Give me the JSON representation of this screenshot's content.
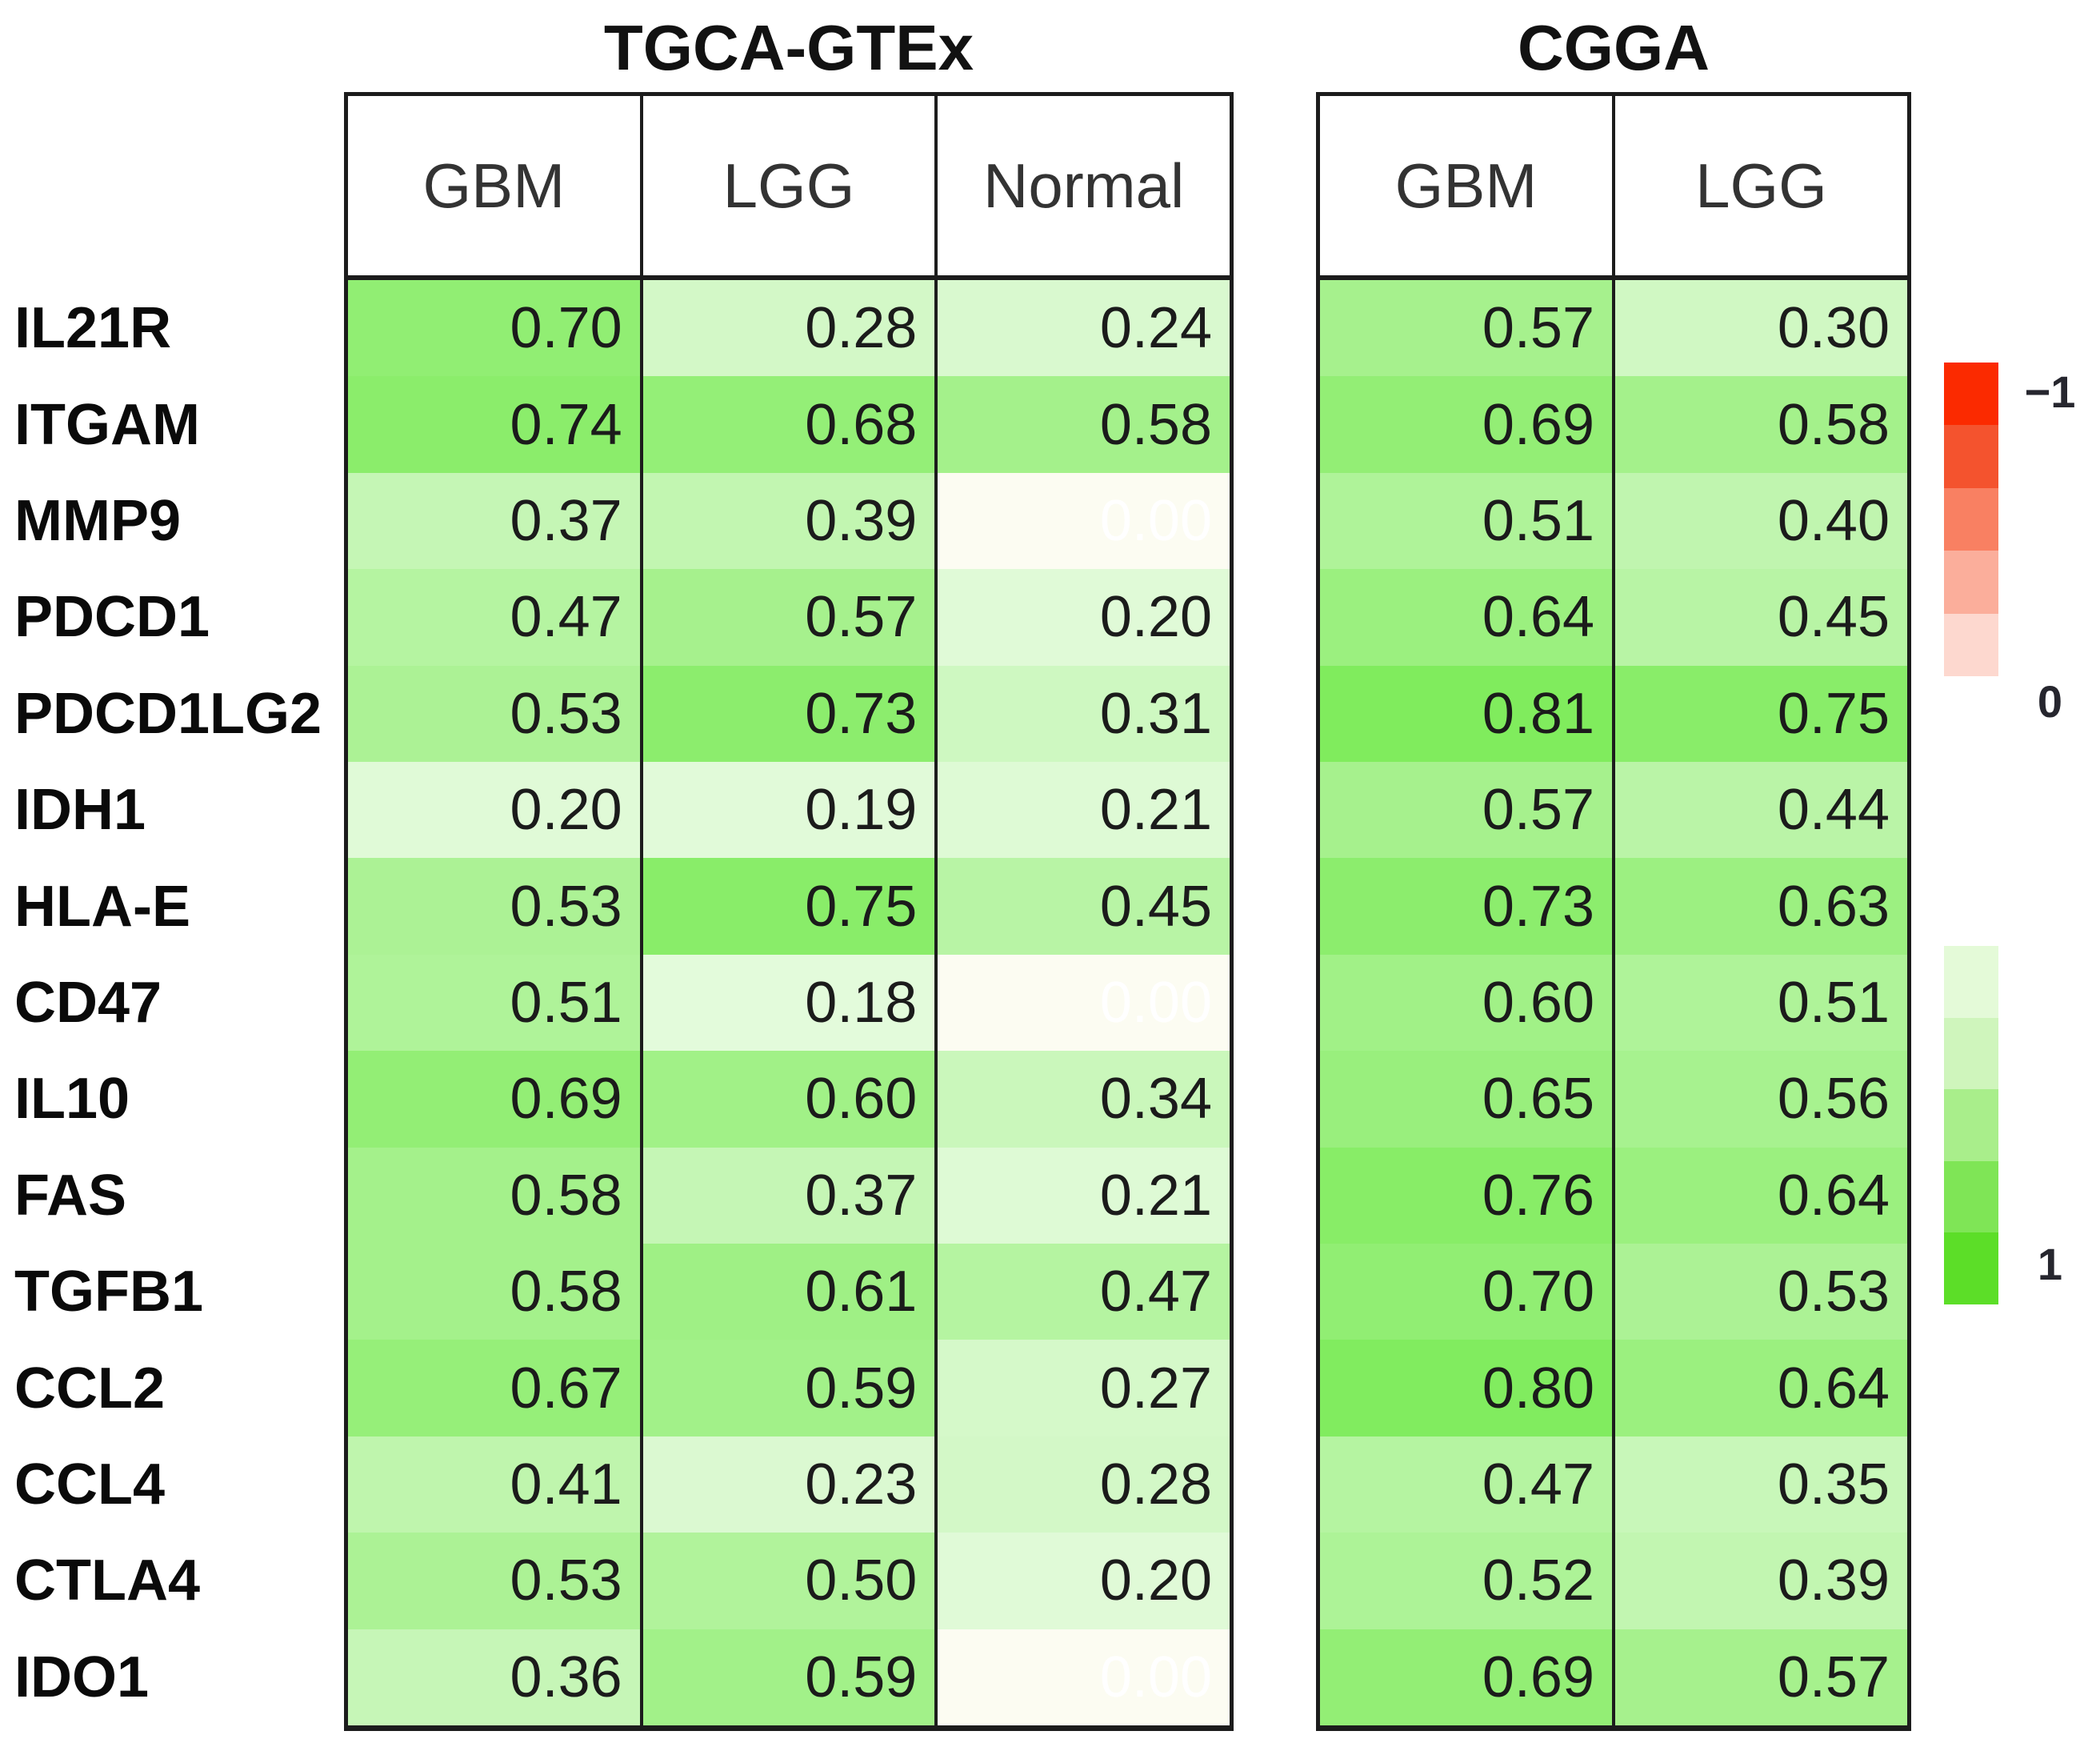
{
  "chart_data": {
    "type": "heatmap",
    "rows": [
      "IL21R",
      "ITGAM",
      "MMP9",
      "PDCD1",
      "PDCD1LG2",
      "IDH1",
      "HLA-E",
      "CD47",
      "IL10",
      "FAS",
      "TGFB1",
      "CCL2",
      "CCL4",
      "CTLA4",
      "IDO1"
    ],
    "panels": [
      {
        "title": "TGCA-GTEx",
        "columns": [
          "GBM",
          "LGG",
          "Normal"
        ],
        "values": [
          [
            0.7,
            0.28,
            0.24
          ],
          [
            0.74,
            0.68,
            0.58
          ],
          [
            0.37,
            0.39,
            0.0
          ],
          [
            0.47,
            0.57,
            0.2
          ],
          [
            0.53,
            0.73,
            0.31
          ],
          [
            0.2,
            0.19,
            0.21
          ],
          [
            0.53,
            0.75,
            0.45
          ],
          [
            0.51,
            0.18,
            0.0
          ],
          [
            0.69,
            0.6,
            0.34
          ],
          [
            0.58,
            0.37,
            0.21
          ],
          [
            0.58,
            0.61,
            0.47
          ],
          [
            0.67,
            0.59,
            0.27
          ],
          [
            0.41,
            0.23,
            0.28
          ],
          [
            0.53,
            0.5,
            0.2
          ],
          [
            0.36,
            0.59,
            0.0
          ]
        ]
      },
      {
        "title": "CGGA",
        "columns": [
          "GBM",
          "LGG"
        ],
        "values": [
          [
            0.57,
            0.3
          ],
          [
            0.69,
            0.58
          ],
          [
            0.51,
            0.4
          ],
          [
            0.64,
            0.45
          ],
          [
            0.81,
            0.75
          ],
          [
            0.57,
            0.44
          ],
          [
            0.73,
            0.63
          ],
          [
            0.6,
            0.51
          ],
          [
            0.65,
            0.56
          ],
          [
            0.76,
            0.64
          ],
          [
            0.7,
            0.53
          ],
          [
            0.8,
            0.64
          ],
          [
            0.47,
            0.35
          ],
          [
            0.52,
            0.39
          ],
          [
            0.69,
            0.57
          ]
        ]
      }
    ],
    "value_format_decimals": 2,
    "colorscale": {
      "domain": [
        -1,
        0,
        1
      ],
      "negative_color": "#FB2A00",
      "zero_color": "#FFFFFF",
      "positive_color": "#62E737",
      "zero_cell_background": "#FCFCF2",
      "zero_cell_text": "#FFFFFF",
      "value_text": "#1B1B1B"
    },
    "legend": {
      "tick_labels": [
        "−1",
        "0",
        "1"
      ],
      "red_steps": [
        "#FB2A00",
        "#F4532E",
        "#F98062",
        "#FBAE9B",
        "#FDD8CF"
      ],
      "green_steps": [
        "#E4FAD8",
        "#CFF5BC",
        "#A9EE8B",
        "#7FE556",
        "#5CDE28"
      ]
    }
  }
}
